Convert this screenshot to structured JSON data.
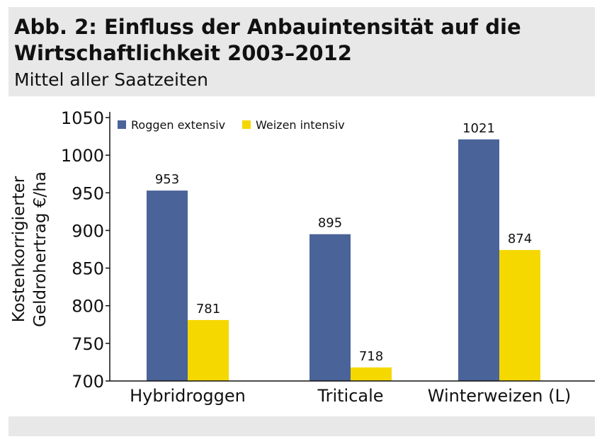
{
  "header": {
    "title_line1": "Abb. 2: Einfluss der Anbauintensität auf die",
    "title_line2": "Wirtschaftlichkeit 2003–2012",
    "subtitle": "Mittel aller Saatzeiten"
  },
  "chart_data": {
    "type": "bar",
    "title": "Abb. 2: Einfluss der Anbauintensität auf die Wirtschaftlichkeit 2003–2012",
    "subtitle": "Mittel aller Saatzeiten",
    "ylabel_line1": "Kostenkorrigierter",
    "ylabel_line2": "Geldrohertrag €/ha",
    "xlabel": "",
    "categories": [
      "Hybridroggen",
      "Triticale",
      "Winterweizen (L)"
    ],
    "series": [
      {
        "name": "Roggen extensiv",
        "color": "#4a6399",
        "values": [
          953,
          895,
          1021
        ]
      },
      {
        "name": "Weizen intensiv",
        "color": "#f5d800",
        "values": [
          781,
          718,
          874
        ]
      }
    ],
    "ylim": [
      700,
      1050
    ],
    "yticks": [
      700,
      750,
      800,
      850,
      900,
      950,
      1000,
      1050
    ],
    "legend_position": "top-left",
    "grid": false
  }
}
